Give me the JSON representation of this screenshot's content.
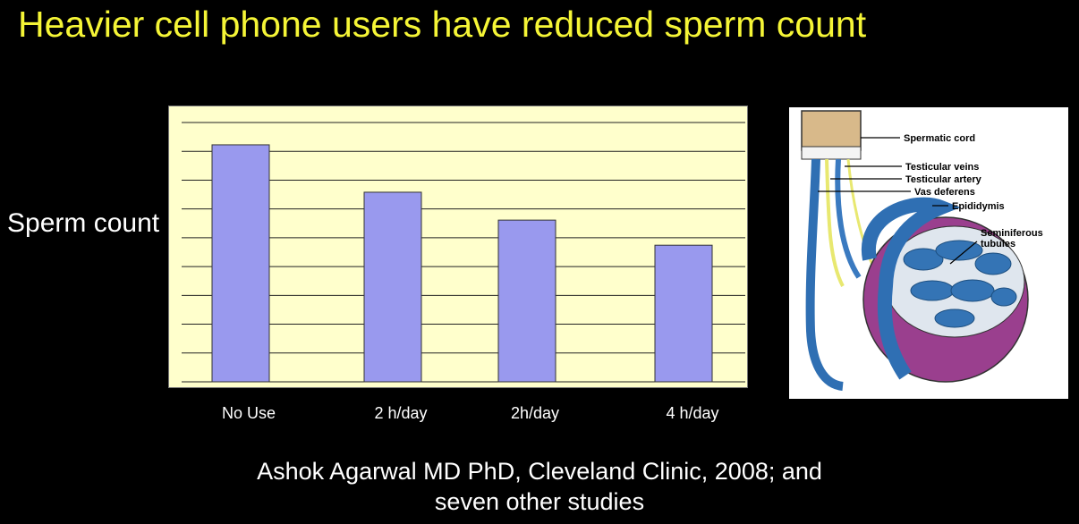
{
  "slide_title": "Heavier cell phone users have reduced sperm count",
  "citation": {
    "line1": "Ashok Agarwal MD PhD, Cleveland Clinic, 2008; and",
    "line2": "seven other studies"
  },
  "chart_data": {
    "type": "bar",
    "categories": [
      "No Use",
      "2 h/day",
      "2h/day",
      "4 h/day"
    ],
    "values": [
      8.5,
      6.8,
      5.8,
      4.9
    ],
    "ylabel": "Sperm count",
    "ylim": [
      0,
      9.3
    ],
    "grid": true,
    "colors": {
      "bar": "#9999ee",
      "plot_background": "#ffffcc",
      "gridline": "#222222"
    }
  },
  "diagram": {
    "labels": {
      "spermatic_cord": "Spermatic cord",
      "testicular_veins": "Testicular veins",
      "testicular_artery": "Testicular artery",
      "vas_deferens": "Vas deferens",
      "epididymis": "Epididymis",
      "seminiferous_1": "Seminiferous",
      "seminiferous_2": "tubules"
    }
  }
}
